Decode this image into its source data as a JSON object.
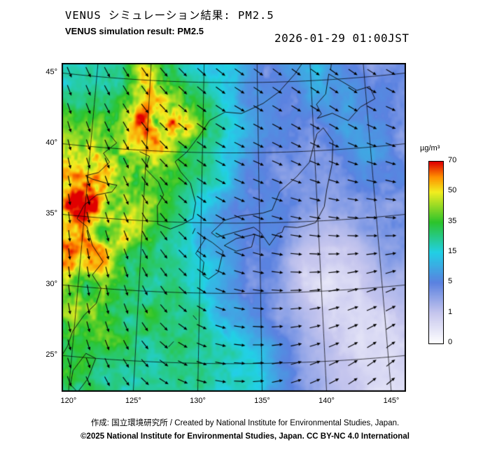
{
  "header": {
    "title_jp": "VENUS シミュレーション結果: PM2.5",
    "subtitle_en": "VENUS simulation result: PM2.5",
    "timestamp": "2026-01-29 01:00JST"
  },
  "axes": {
    "lat_labels": [
      "45°",
      "40°",
      "35°",
      "30°",
      "25°"
    ],
    "lat_values": [
      45,
      40,
      35,
      30,
      25
    ],
    "lon_labels": [
      "120°",
      "125°",
      "130°",
      "135°",
      "140°",
      "145°"
    ],
    "lon_values": [
      120,
      125,
      130,
      135,
      140,
      145
    ]
  },
  "colorbar": {
    "unit": "µg/m³",
    "tick_labels": [
      "70",
      "50",
      "35",
      "15",
      "5",
      "1",
      "0"
    ]
  },
  "footer": {
    "credit": "作成: 国立環境研究所 / Created by National Institute for Environmental Studies, Japan.",
    "license": "©2025 National Institute for Environmental Studies, Japan. CC BY-NC 4.0 International"
  },
  "chart_data": {
    "type": "heatmap",
    "title": "VENUS simulation result: PM2.5",
    "unit": "µg/m³",
    "lon_range": [
      118.5,
      147.5
    ],
    "lat_range": [
      21.5,
      46.5
    ],
    "scale": {
      "tick_values": [
        0,
        1,
        5,
        15,
        35,
        50,
        70
      ],
      "stop_positions": [
        0,
        0.1667,
        0.3333,
        0.5,
        0.6667,
        0.8333,
        0.9167,
        1
      ],
      "stop_colors": [
        "#ffffff",
        "#c6c6ee",
        "#5b82e0",
        "#22d0e6",
        "#2cc42c",
        "#f2ee20",
        "#ff9000",
        "#e00000"
      ]
    },
    "pm25": {
      "ncols": 14,
      "nrows": 12,
      "lon0": 118.5,
      "dlon": 2.2308,
      "lat0": 46.5,
      "dlat": 2.2727,
      "values": [
        [
          16,
          18,
          28,
          38,
          30,
          16,
          18,
          7,
          5,
          8,
          12,
          5,
          4,
          4
        ],
        [
          20,
          26,
          36,
          55,
          45,
          25,
          15,
          8,
          5,
          5,
          10,
          8,
          4,
          4
        ],
        [
          30,
          40,
          45,
          62,
          68,
          38,
          18,
          10,
          6,
          4,
          6,
          10,
          6,
          4
        ],
        [
          45,
          52,
          48,
          42,
          38,
          28,
          15,
          8,
          5,
          4,
          4,
          6,
          8,
          5
        ],
        [
          60,
          62,
          48,
          38,
          28,
          18,
          12,
          7,
          5,
          4,
          3,
          4,
          6,
          5
        ],
        [
          68,
          66,
          50,
          36,
          24,
          14,
          9,
          6,
          5,
          3,
          2,
          3,
          4,
          4
        ],
        [
          62,
          55,
          44,
          30,
          20,
          14,
          8,
          5,
          4,
          1.2,
          0.8,
          1,
          3,
          3
        ],
        [
          48,
          44,
          38,
          30,
          24,
          17,
          10,
          5,
          3,
          0.8,
          0.5,
          0.6,
          2,
          2
        ],
        [
          42,
          38,
          33,
          29,
          27,
          22,
          14,
          7,
          3,
          1.5,
          0.8,
          0.6,
          1,
          1.5
        ],
        [
          36,
          32,
          29,
          26,
          24,
          26,
          20,
          12,
          6,
          2.5,
          1,
          0.5,
          0.6,
          1
        ],
        [
          30,
          28,
          26,
          23,
          21,
          23,
          24,
          16,
          8,
          3,
          1.2,
          0.6,
          0.5,
          0.8
        ],
        [
          26,
          24,
          23,
          21,
          19,
          18,
          18,
          13,
          8,
          4,
          1.5,
          0.8,
          0.5,
          0.6
        ]
      ]
    },
    "wind": {
      "ncols": 7,
      "nrows": 7,
      "lon0": 118.5,
      "dlon": 4.8333,
      "lat0": 46.5,
      "dlat": 4.1667,
      "u": [
        [
          0.5,
          0.6,
          0.7,
          0.8,
          0.7,
          0.6,
          0.6
        ],
        [
          0.4,
          0.6,
          0.8,
          0.9,
          0.8,
          0.7,
          0.7
        ],
        [
          0.3,
          0.5,
          0.8,
          0.9,
          0.9,
          0.8,
          0.8
        ],
        [
          0.2,
          0.4,
          0.7,
          0.9,
          1.0,
          0.9,
          0.9
        ],
        [
          0.2,
          0.3,
          0.6,
          0.9,
          1.0,
          0.9,
          0.8
        ],
        [
          0.3,
          0.4,
          0.7,
          0.9,
          0.9,
          0.8,
          0.7
        ],
        [
          0.4,
          0.5,
          0.8,
          0.9,
          0.8,
          0.7,
          0.6
        ]
      ],
      "v": [
        [
          -0.8,
          -0.8,
          -0.7,
          -0.6,
          -0.6,
          -0.5,
          -0.5
        ],
        [
          -0.9,
          -0.8,
          -0.6,
          -0.5,
          -0.5,
          -0.5,
          -0.4
        ],
        [
          -0.9,
          -0.9,
          -0.6,
          -0.4,
          -0.4,
          -0.3,
          -0.3
        ],
        [
          -1.0,
          -0.9,
          -0.7,
          -0.4,
          -0.2,
          -0.1,
          -0.1
        ],
        [
          -1.0,
          -0.9,
          -0.6,
          -0.2,
          0.0,
          0.2,
          0.3
        ],
        [
          -0.9,
          -0.8,
          -0.4,
          -0.1,
          0.2,
          0.4,
          0.5
        ],
        [
          -0.8,
          -0.6,
          -0.3,
          0.0,
          0.3,
          0.5,
          0.5
        ]
      ]
    },
    "coastlines": [
      [
        [
          140.9,
          41.6
        ],
        [
          141.7,
          40.6
        ],
        [
          141.5,
          39.0
        ],
        [
          140.9,
          37.2
        ],
        [
          140.6,
          36.0
        ],
        [
          139.8,
          34.9
        ],
        [
          138.9,
          34.7
        ],
        [
          138.2,
          34.6
        ],
        [
          137.1,
          34.7
        ],
        [
          136.9,
          34.3
        ],
        [
          136.5,
          34.2
        ],
        [
          135.8,
          33.4
        ],
        [
          135.1,
          34.3
        ],
        [
          134.5,
          34.7
        ],
        [
          133.1,
          34.4
        ],
        [
          131.4,
          34.0
        ],
        [
          130.9,
          34.3
        ],
        [
          132.0,
          35.2
        ],
        [
          133.3,
          35.5
        ],
        [
          135.3,
          35.7
        ],
        [
          136.1,
          35.9
        ],
        [
          136.8,
          37.2
        ],
        [
          138.3,
          38.2
        ],
        [
          139.5,
          39.2
        ],
        [
          140.0,
          40.5
        ],
        [
          140.3,
          41.2
        ],
        [
          140.9,
          41.6
        ]
      ],
      [
        [
          140.4,
          42.3
        ],
        [
          141.8,
          42.6
        ],
        [
          143.2,
          42.0
        ],
        [
          144.4,
          42.9
        ],
        [
          145.8,
          43.4
        ],
        [
          145.4,
          44.3
        ],
        [
          144.2,
          44.1
        ],
        [
          142.9,
          44.8
        ],
        [
          141.7,
          45.4
        ],
        [
          141.3,
          44.0
        ],
        [
          140.4,
          43.3
        ],
        [
          140.8,
          42.6
        ],
        [
          140.4,
          42.3
        ]
      ],
      [
        [
          130.4,
          33.9
        ],
        [
          131.0,
          33.6
        ],
        [
          131.9,
          33.0
        ],
        [
          131.5,
          31.5
        ],
        [
          130.7,
          31.0
        ],
        [
          130.2,
          31.3
        ],
        [
          130.3,
          32.2
        ],
        [
          129.6,
          32.8
        ],
        [
          130.4,
          33.9
        ]
      ],
      [
        [
          132.0,
          33.4
        ],
        [
          133.0,
          33.9
        ],
        [
          134.6,
          34.2
        ],
        [
          134.3,
          33.3
        ],
        [
          133.0,
          33.0
        ],
        [
          132.0,
          33.4
        ]
      ],
      [
        [
          124.4,
          39.9
        ],
        [
          125.3,
          39.6
        ],
        [
          125.0,
          38.7
        ],
        [
          126.2,
          37.8
        ],
        [
          126.7,
          36.9
        ],
        [
          126.2,
          36.1
        ],
        [
          126.3,
          34.8
        ],
        [
          127.4,
          34.5
        ],
        [
          128.5,
          34.9
        ],
        [
          129.3,
          35.3
        ],
        [
          129.5,
          36.4
        ],
        [
          129.0,
          37.8
        ],
        [
          128.1,
          38.6
        ],
        [
          127.6,
          39.3
        ],
        [
          128.6,
          40.0
        ],
        [
          129.7,
          41.2
        ],
        [
          130.6,
          42.3
        ],
        [
          132.0,
          42.9
        ],
        [
          133.5,
          42.8
        ],
        [
          135.5,
          43.5
        ],
        [
          137.0,
          44.3
        ],
        [
          138.5,
          45.5
        ],
        [
          139.5,
          46.5
        ]
      ],
      [
        [
          121.7,
          40.9
        ],
        [
          122.3,
          40.4
        ],
        [
          121.2,
          39.6
        ],
        [
          121.8,
          39.0
        ],
        [
          120.9,
          38.2
        ],
        [
          119.8,
          37.9
        ],
        [
          120.4,
          37.7
        ],
        [
          121.6,
          37.5
        ],
        [
          122.6,
          37.4
        ],
        [
          122.2,
          36.9
        ],
        [
          120.9,
          36.6
        ],
        [
          119.9,
          35.8
        ],
        [
          119.4,
          34.8
        ],
        [
          120.3,
          34.3
        ],
        [
          120.9,
          33.0
        ],
        [
          121.9,
          31.9
        ],
        [
          121.1,
          30.9
        ],
        [
          121.9,
          30.0
        ],
        [
          121.6,
          28.9
        ],
        [
          120.7,
          28.0
        ],
        [
          119.9,
          26.8
        ],
        [
          119.6,
          25.7
        ],
        [
          119.0,
          24.6
        ],
        [
          118.2,
          24.2
        ]
      ],
      [
        [
          121.1,
          25.3
        ],
        [
          121.9,
          25.0
        ],
        [
          121.4,
          23.5
        ],
        [
          120.7,
          22.5
        ],
        [
          120.1,
          23.0
        ],
        [
          120.2,
          24.0
        ],
        [
          121.1,
          25.3
        ]
      ],
      [
        [
          141.9,
          45.7
        ],
        [
          142.1,
          46.5
        ]
      ],
      [
        [
          129.3,
          34.2
        ],
        [
          129.5,
          34.6
        ]
      ],
      [
        [
          127.6,
          26.1
        ],
        [
          128.0,
          26.5
        ]
      ],
      [
        [
          129.5,
          28.4
        ],
        [
          129.8,
          28.1
        ]
      ]
    ]
  }
}
